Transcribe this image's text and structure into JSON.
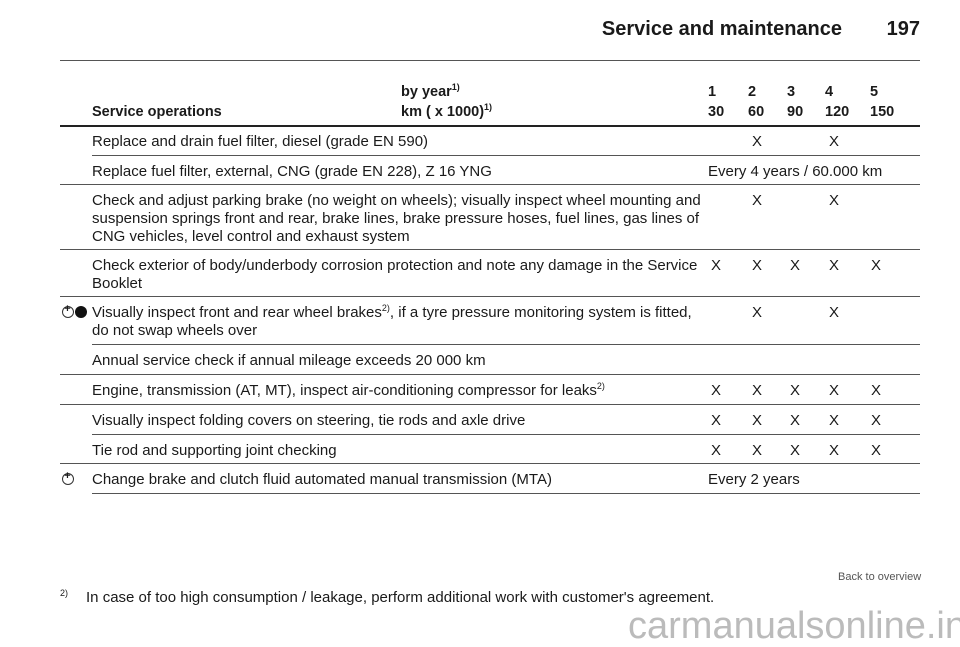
{
  "header": {
    "title": "Service and maintenance",
    "page": "197"
  },
  "table": {
    "col_header": "Service operations",
    "by_year": "by year",
    "km": "km ( x 1000)",
    "sup": "1)",
    "years": [
      "1",
      "2",
      "3",
      "4",
      "5"
    ],
    "kms": [
      "30",
      "60",
      "90",
      "120",
      "150"
    ],
    "rows": [
      {
        "text": "Replace and drain fuel filter, diesel (grade EN 590)",
        "marks": [
          "",
          "X",
          "",
          "X",
          ""
        ]
      },
      {
        "text": "Replace fuel filter, external, CNG (grade EN 228), Z 16 YNG",
        "span": "Every 4 years / 60.000 km"
      },
      {
        "text": "Check and adjust parking brake (no weight on wheels); visually inspect wheel mounting and suspension springs front and rear, brake lines, brake pressure hoses, fuel lines, gas lines of CNG vehicles, level control and exhaust system",
        "marks": [
          "",
          "X",
          "",
          "X",
          ""
        ]
      },
      {
        "text": "Check exterior of body/underbody corrosion protection and note any damage in the Service Booklet",
        "marks": [
          "X",
          "X",
          "X",
          "X",
          "X"
        ]
      },
      {
        "text": "Visually inspect front and rear wheel brakes",
        "sup": "2)",
        "text2": ", if a tyre pressure monitoring system is fitted, do not swap wheels over",
        "marks": [
          "",
          "X",
          "",
          "X",
          ""
        ],
        "icons": [
          "plus-circle-icon",
          "filled-circle-icon"
        ]
      },
      {
        "text": "Annual service check if annual mileage exceeds 20 000 km",
        "marks": [
          "",
          "",
          "",
          "",
          ""
        ]
      },
      {
        "text": "Engine, transmission (AT, MT), inspect air-conditioning compressor for leaks",
        "sup": "2)",
        "marks": [
          "X",
          "X",
          "X",
          "X",
          "X"
        ]
      },
      {
        "text": "Visually inspect folding covers on steering, tie rods and axle drive",
        "marks": [
          "X",
          "X",
          "X",
          "X",
          "X"
        ]
      },
      {
        "text": "Tie rod and supporting joint checking",
        "marks": [
          "X",
          "X",
          "X",
          "X",
          "X"
        ]
      },
      {
        "text": "Change brake and clutch fluid automated manual transmission (MTA)",
        "span": "Every 2 years",
        "icons": [
          "plus-circle-icon"
        ]
      }
    ]
  },
  "footnote": {
    "mark": "2)",
    "text": "In case of too high consumption / leakage, perform additional work with customer's agreement."
  },
  "back_link": "Back to overview",
  "watermark": "carmanualsonline.info"
}
